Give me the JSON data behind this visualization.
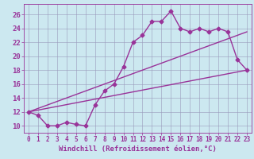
{
  "xlabel": "Windchill (Refroidissement éolien,°C)",
  "bg_color": "#cce8f0",
  "line_color": "#993399",
  "xlim": [
    -0.5,
    23.5
  ],
  "ylim": [
    9.0,
    27.5
  ],
  "xticks": [
    0,
    1,
    2,
    3,
    4,
    5,
    6,
    7,
    8,
    9,
    10,
    11,
    12,
    13,
    14,
    15,
    16,
    17,
    18,
    19,
    20,
    21,
    22,
    23
  ],
  "yticks": [
    10,
    12,
    14,
    16,
    18,
    20,
    22,
    24,
    26
  ],
  "main_x": [
    0,
    1,
    2,
    3,
    4,
    5,
    6,
    7,
    8,
    9,
    10,
    11,
    12,
    13,
    14,
    15,
    16,
    17,
    18,
    19,
    20,
    21,
    22,
    23
  ],
  "main_y": [
    12.0,
    11.5,
    10.0,
    10.0,
    10.5,
    10.2,
    10.0,
    13.0,
    15.0,
    16.0,
    18.5,
    22.0,
    23.0,
    25.0,
    25.0,
    26.5,
    24.0,
    23.5,
    24.0,
    23.5,
    24.0,
    23.5,
    19.5,
    18.0
  ],
  "line2_x": [
    0,
    23
  ],
  "line2_y": [
    12.0,
    18.0
  ],
  "line3_x": [
    0,
    23
  ],
  "line3_y": [
    12.0,
    23.5
  ],
  "grid_color": "#9999bb",
  "marker": "D",
  "markersize": 2.5,
  "linewidth": 1.0,
  "xlabel_fontsize": 6.5,
  "ytick_fontsize": 6.5,
  "xtick_fontsize": 5.5
}
